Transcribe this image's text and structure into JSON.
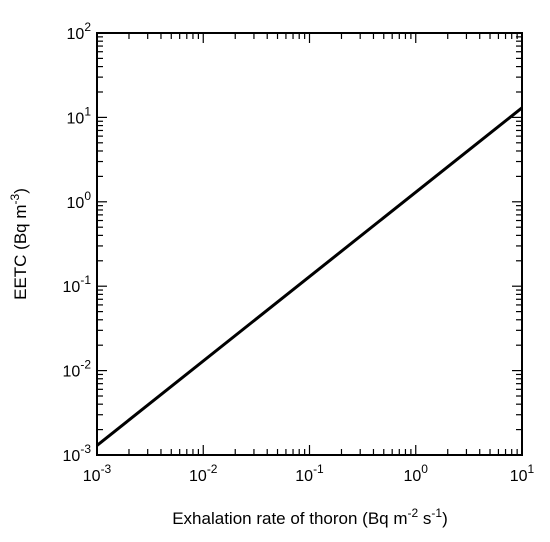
{
  "chart_data": {
    "type": "line",
    "xscale": "log",
    "yscale": "log",
    "xlim": [
      0.001,
      10
    ],
    "ylim": [
      0.001,
      100
    ],
    "xlabel": {
      "text": "Exhalation rate of thoron  (Bq m",
      "sup1": "-2",
      "mid": " s",
      "sup2": "-1",
      "end": ")"
    },
    "ylabel": {
      "text": "EETC  (Bq m",
      "sup": "-3",
      "end": ")"
    },
    "x_ticks": [
      {
        "base": "10",
        "exp": "-3",
        "value": 0.001
      },
      {
        "base": "10",
        "exp": "-2",
        "value": 0.01
      },
      {
        "base": "10",
        "exp": "-1",
        "value": 0.1
      },
      {
        "base": "10",
        "exp": "0",
        "value": 1
      },
      {
        "base": "10",
        "exp": "1",
        "value": 10
      }
    ],
    "y_ticks": [
      {
        "base": "10",
        "exp": "-3",
        "value": 0.001
      },
      {
        "base": "10",
        "exp": "-2",
        "value": 0.01
      },
      {
        "base": "10",
        "exp": "-1",
        "value": 0.1
      },
      {
        "base": "10",
        "exp": "0",
        "value": 1
      },
      {
        "base": "10",
        "exp": "1",
        "value": 10
      },
      {
        "base": "10",
        "exp": "2",
        "value": 100
      }
    ],
    "series": [
      {
        "x": [
          0.001,
          10
        ],
        "y": [
          0.0013,
          13
        ],
        "color": "#000000"
      }
    ],
    "grid": false,
    "legend": "none"
  }
}
